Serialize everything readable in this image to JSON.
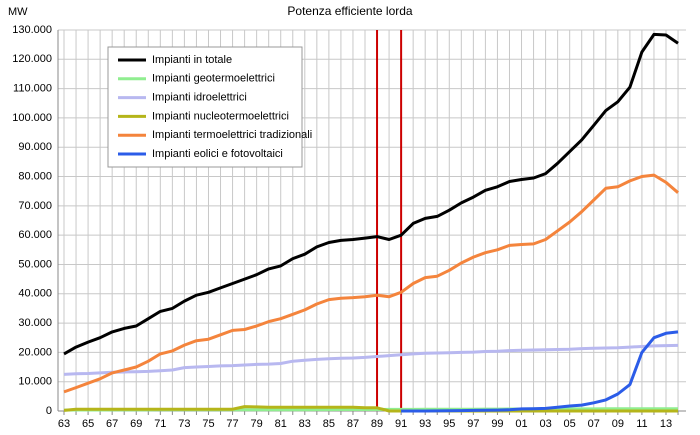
{
  "chart_data": {
    "type": "line",
    "title": "Potenza efficiente lorda",
    "y_label": "MW",
    "categories": [
      "63",
      null,
      "65",
      null,
      "67",
      null,
      "69",
      null,
      "71",
      null,
      "73",
      null,
      "75",
      null,
      "77",
      null,
      "79",
      null,
      "81",
      null,
      "83",
      null,
      "85",
      null,
      "87",
      null,
      "89",
      null,
      "91",
      null,
      "93",
      null,
      "95",
      null,
      "97",
      null,
      "99",
      null,
      "01",
      null,
      "03",
      null,
      "05",
      null,
      "07",
      null,
      "09",
      null,
      "11",
      null,
      "13",
      null
    ],
    "series": [
      {
        "name": "Impianti in totale",
        "color": "#000000",
        "values": [
          19500,
          21800,
          23500,
          25000,
          27000,
          28200,
          29000,
          31500,
          34000,
          35000,
          37500,
          39500,
          40500,
          42000,
          43500,
          45000,
          46500,
          48500,
          49500,
          52000,
          53500,
          56000,
          57500,
          58200,
          58500,
          59000,
          59500,
          58500,
          60000,
          64000,
          65700,
          66400,
          68500,
          71000,
          73000,
          75300,
          76500,
          78300,
          79000,
          79500,
          81000,
          84500,
          88500,
          92500,
          97500,
          102500,
          105500,
          110500,
          122500,
          128500,
          128300,
          125500
        ]
      },
      {
        "name": "Impianti geotermoelettrici",
        "color": "#90ee90",
        "values": [
          300,
          350,
          350,
          350,
          380,
          380,
          380,
          380,
          400,
          400,
          400,
          400,
          420,
          420,
          420,
          420,
          440,
          440,
          450,
          450,
          460,
          470,
          480,
          500,
          500,
          510,
          520,
          540,
          550,
          560,
          570,
          580,
          600,
          620,
          630,
          650,
          660,
          680,
          690,
          700,
          700,
          710,
          720,
          720,
          730,
          740,
          740,
          760,
          770,
          780,
          790,
          800
        ]
      },
      {
        "name": "Impianti idroelettrici",
        "color": "#b8b8f0",
        "values": [
          12500,
          12700,
          12800,
          13000,
          13200,
          13300,
          13400,
          13500,
          13700,
          14000,
          14800,
          15000,
          15200,
          15400,
          15500,
          15700,
          15900,
          16000,
          16200,
          17000,
          17300,
          17600,
          17800,
          18000,
          18100,
          18300,
          18600,
          18900,
          19200,
          19500,
          19700,
          19800,
          19900,
          20000,
          20100,
          20300,
          20400,
          20600,
          20700,
          20800,
          20900,
          21000,
          21100,
          21300,
          21400,
          21500,
          21600,
          21800,
          22000,
          22200,
          22300,
          22400
        ]
      },
      {
        "name": "Impianti nucleotermoelettrici",
        "color": "#b5b51a",
        "values": [
          200,
          600,
          600,
          600,
          600,
          600,
          600,
          600,
          600,
          600,
          600,
          600,
          600,
          600,
          600,
          1500,
          1400,
          1300,
          1300,
          1300,
          1300,
          1300,
          1300,
          1300,
          1300,
          1100,
          1100,
          0,
          0,
          0,
          0,
          0,
          0,
          0,
          0,
          0,
          0,
          0,
          0,
          0,
          0,
          0,
          0,
          0,
          0,
          0,
          0,
          0,
          0,
          0,
          0,
          0
        ]
      },
      {
        "name": "Impianti termoelettrici tradizionali",
        "color": "#f4843c",
        "values": [
          6500,
          8000,
          9500,
          11000,
          13000,
          14000,
          15000,
          17000,
          19500,
          20500,
          22500,
          24000,
          24500,
          26000,
          27500,
          27800,
          29000,
          30500,
          31500,
          33000,
          34500,
          36500,
          38000,
          38500,
          38700,
          39000,
          39500,
          39000,
          40500,
          43500,
          45500,
          46000,
          48000,
          50500,
          52500,
          54000,
          55000,
          56500,
          56800,
          57000,
          58500,
          61500,
          64500,
          68000,
          72000,
          76000,
          76500,
          78500,
          80000,
          80500,
          78000,
          74500
        ]
      },
      {
        "name": "Impianti eolici e fotovoltaici",
        "color": "#2b5ce8",
        "values": [
          null,
          null,
          null,
          null,
          null,
          null,
          null,
          null,
          null,
          null,
          null,
          null,
          null,
          null,
          null,
          null,
          null,
          null,
          null,
          null,
          null,
          null,
          null,
          null,
          null,
          null,
          null,
          null,
          0,
          0,
          0,
          50,
          100,
          150,
          200,
          250,
          300,
          400,
          700,
          800,
          900,
          1300,
          1700,
          2000,
          2800,
          3800,
          5800,
          9000,
          20000,
          25000,
          26500,
          27000
        ]
      }
    ],
    "ylim": [
      0,
      130000
    ],
    "yticks": [
      0,
      {
        "value": 10000,
        "label": "10.000"
      },
      {
        "value": 20000,
        "label": "20.000"
      },
      {
        "value": 30000,
        "label": "30.000"
      },
      {
        "value": 40000,
        "label": "40.000"
      },
      {
        "value": 50000,
        "label": "50.000"
      },
      {
        "value": 60000,
        "label": "60.000"
      },
      {
        "value": 70000,
        "label": "70.000"
      },
      {
        "value": 80000,
        "label": "80.000"
      },
      {
        "value": 90000,
        "label": "90.000"
      },
      {
        "value": 100000,
        "label": "100.000"
      },
      {
        "value": 110000,
        "label": "110.000"
      },
      {
        "value": 120000,
        "label": "120.000"
      },
      {
        "value": 130000,
        "label": "130.000"
      }
    ],
    "grid": true,
    "legend": "upper left",
    "vertical_lines": {
      "color": "#cc0000",
      "at": [
        "89",
        "91"
      ]
    }
  }
}
